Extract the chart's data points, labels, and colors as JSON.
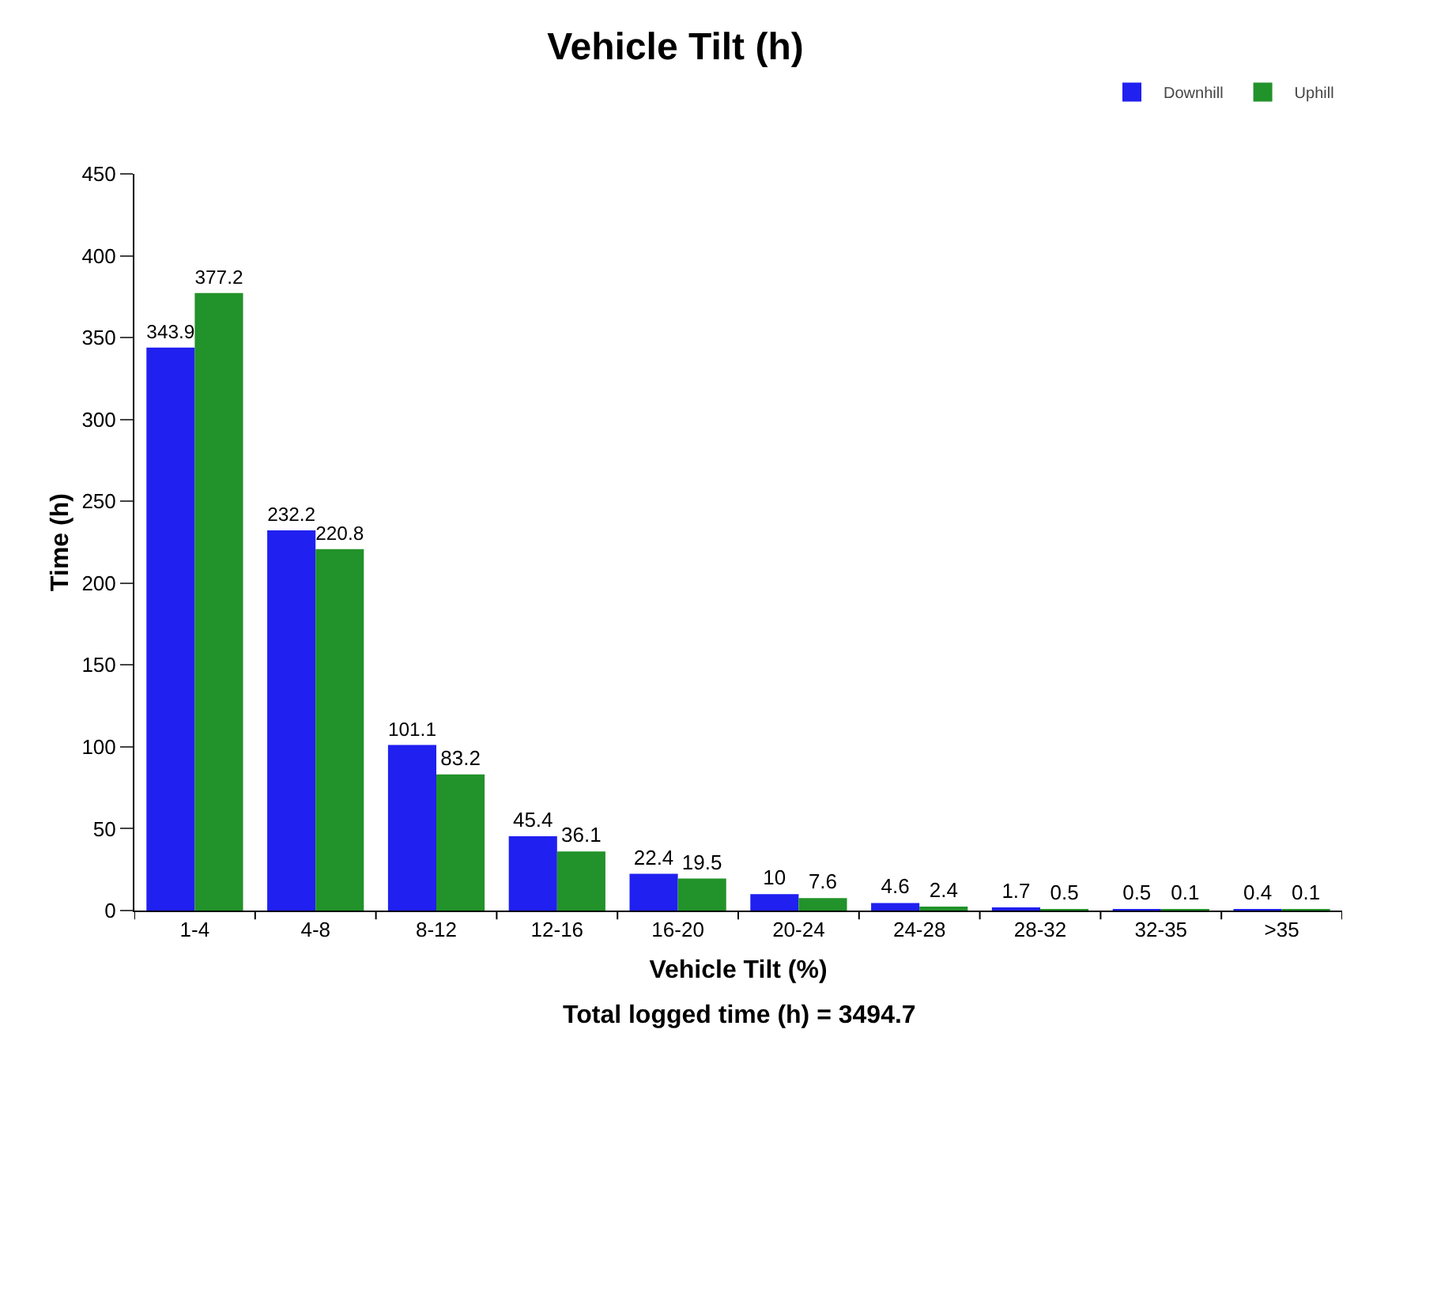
{
  "chart_data": {
    "type": "bar",
    "title": "Vehicle Tilt (h)",
    "xlabel": "Vehicle Tilt (%)",
    "ylabel": "Time (h)",
    "categories": [
      "1-4",
      "4-8",
      "8-12",
      "12-16",
      "16-20",
      "20-24",
      "24-28",
      "28-32",
      "32-35",
      ">35"
    ],
    "series": [
      {
        "name": "Downhill",
        "color": "#2020f0",
        "values": [
          343.9,
          232.2,
          101.1,
          45.4,
          22.4,
          10,
          4.6,
          1.7,
          0.5,
          0.4
        ]
      },
      {
        "name": "Uphill",
        "color": "#22922a",
        "values": [
          377.2,
          220.8,
          83.2,
          36.1,
          19.5,
          7.6,
          2.4,
          0.5,
          0.1,
          0.1
        ]
      }
    ],
    "ylim": [
      0,
      450
    ],
    "yticks": [
      0,
      50,
      100,
      150,
      200,
      250,
      300,
      350,
      400,
      450
    ],
    "data_labels": true,
    "grid": false,
    "legend": "top right",
    "annotations": [
      "Total logged time (h) = 3494.7"
    ]
  }
}
